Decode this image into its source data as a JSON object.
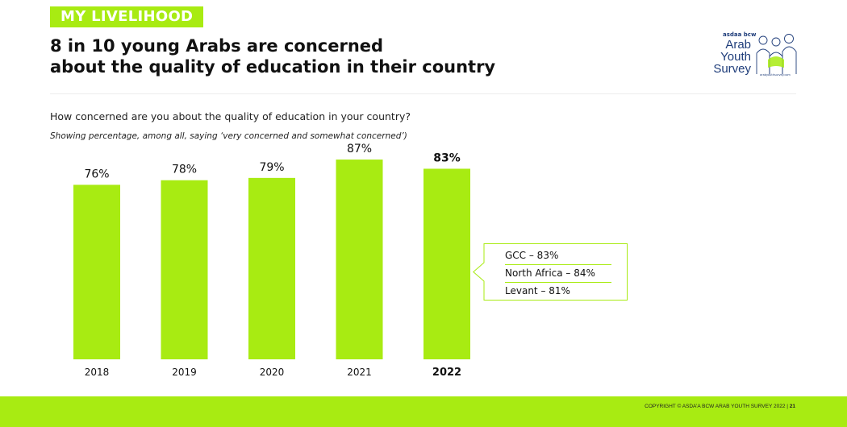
{
  "section_tag": "MY LIVELIHOOD",
  "headline": {
    "line1": "8 in 10 young Arabs are concerned",
    "line2": "about the quality of education in their country"
  },
  "logo": {
    "brand": "asdaa bcw",
    "word1": "Arab",
    "word2": "Youth",
    "word3": "Survey",
    "url": "arabyouthsurvey.com"
  },
  "question": "How concerned are you about the quality of education in  your country?",
  "note": "Showing percentage, among all, saying ‘very concerned and somewhat concerned’)",
  "chart_data": {
    "type": "bar",
    "categories": [
      "2018",
      "2019",
      "2020",
      "2021",
      "2022"
    ],
    "values": [
      76,
      78,
      79,
      87,
      83
    ],
    "data_labels": [
      "76%",
      "78%",
      "79%",
      "87%",
      "83%"
    ],
    "highlighted_category": "2022",
    "bar_color": "#a8eb12",
    "ylim": [
      0,
      100
    ],
    "grid": false,
    "legend": "none"
  },
  "callout": {
    "items": [
      "GCC – 83%",
      "North Africa – 84%",
      "Levant – 81%"
    ]
  },
  "footer": {
    "copyright": "COPYRIGHT © ASDA’A BCW ARAB YOUTH SURVEY 2022  |",
    "page": "21"
  },
  "colors": {
    "accent": "#a8eb12",
    "text": "#1a1a1a",
    "logo": "#1f3d7a"
  }
}
